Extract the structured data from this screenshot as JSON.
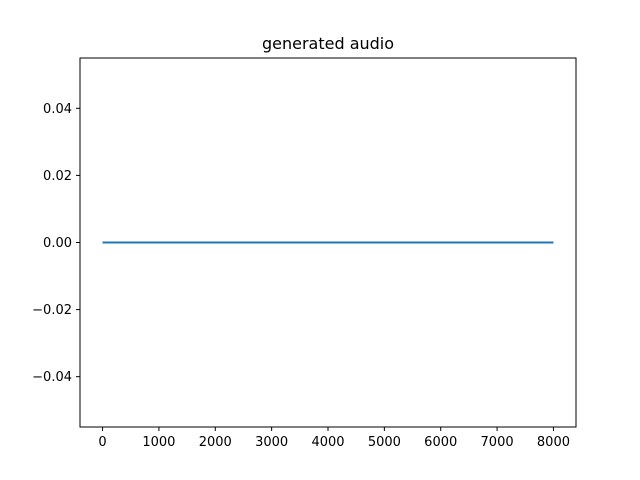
{
  "chart_data": {
    "type": "line",
    "title": "generated audio",
    "xlabel": "",
    "ylabel": "",
    "xlim": [
      -400,
      8400
    ],
    "ylim": [
      -0.055,
      0.055
    ],
    "x_ticks": [
      0,
      1000,
      2000,
      3000,
      4000,
      5000,
      6000,
      7000,
      8000
    ],
    "x_tick_labels": [
      "0",
      "1000",
      "2000",
      "3000",
      "4000",
      "5000",
      "6000",
      "7000",
      "8000"
    ],
    "y_ticks": [
      -0.04,
      -0.02,
      0.0,
      0.02,
      0.04
    ],
    "y_tick_labels": [
      "−0.04",
      "−0.02",
      "0.00",
      "0.02",
      "0.04"
    ],
    "grid": false,
    "legend": "none",
    "series": [
      {
        "x": [
          0,
          8000
        ],
        "values": [
          0.0,
          0.0
        ],
        "color": "#1f77b4"
      }
    ]
  }
}
